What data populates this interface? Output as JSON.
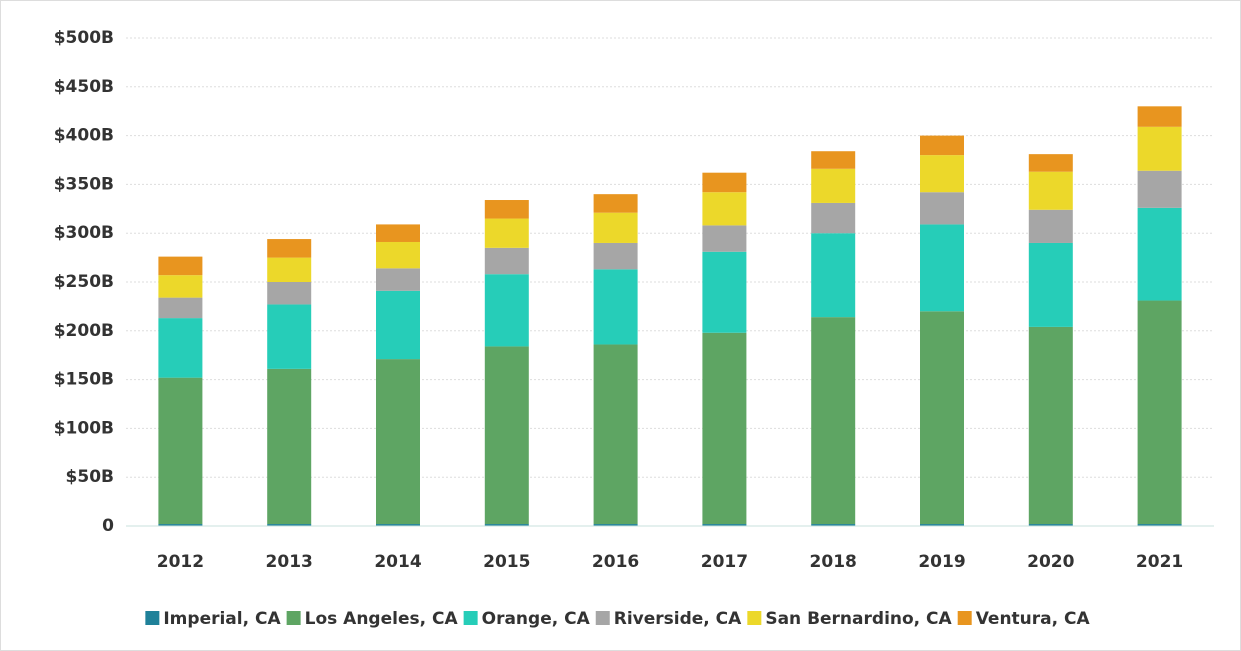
{
  "chart_data": {
    "type": "stacked_bar",
    "categories": [
      "2012",
      "2013",
      "2014",
      "2015",
      "2016",
      "2017",
      "2018",
      "2019",
      "2020",
      "2021"
    ],
    "series": [
      {
        "name": "Imperial, CA",
        "color": "#1f8199",
        "values": [
          2,
          2,
          2,
          2,
          2,
          2,
          2,
          2,
          2,
          2
        ]
      },
      {
        "name": "Los Angeles, CA",
        "color": "#5ea563",
        "values": [
          150,
          159,
          169,
          182,
          184,
          196,
          212,
          218,
          202,
          229
        ]
      },
      {
        "name": "Orange, CA",
        "color": "#26cdb8",
        "values": [
          61,
          66,
          70,
          74,
          77,
          83,
          86,
          89,
          86,
          95
        ]
      },
      {
        "name": "Riverside, CA",
        "color": "#a6a6a6",
        "values": [
          21,
          23,
          23,
          27,
          27,
          27,
          31,
          33,
          34,
          38
        ]
      },
      {
        "name": "San Bernardino, CA",
        "color": "#ecd82a",
        "values": [
          23,
          25,
          27,
          30,
          31,
          34,
          35,
          38,
          39,
          45
        ]
      },
      {
        "name": "Ventura, CA",
        "color": "#e8951f",
        "values": [
          19,
          19,
          18,
          19,
          19,
          20,
          18,
          20,
          18,
          21
        ]
      }
    ],
    "ylim": [
      0,
      500
    ],
    "yticks": [
      0,
      {
        "value": 50,
        "label": "$50B"
      },
      {
        "value": 100,
        "label": "$100B"
      },
      {
        "value": 150,
        "label": "$150B"
      },
      {
        "value": 200,
        "label": "$200B"
      },
      {
        "value": 250,
        "label": "$250B"
      },
      {
        "value": 300,
        "label": "$300B"
      },
      {
        "value": 350,
        "label": "$350B"
      },
      {
        "value": 400,
        "label": "$400B"
      },
      {
        "value": 450,
        "label": "$450B"
      },
      {
        "value": 500,
        "label": "$500B"
      }
    ],
    "grid": true,
    "legend": "bottom"
  }
}
